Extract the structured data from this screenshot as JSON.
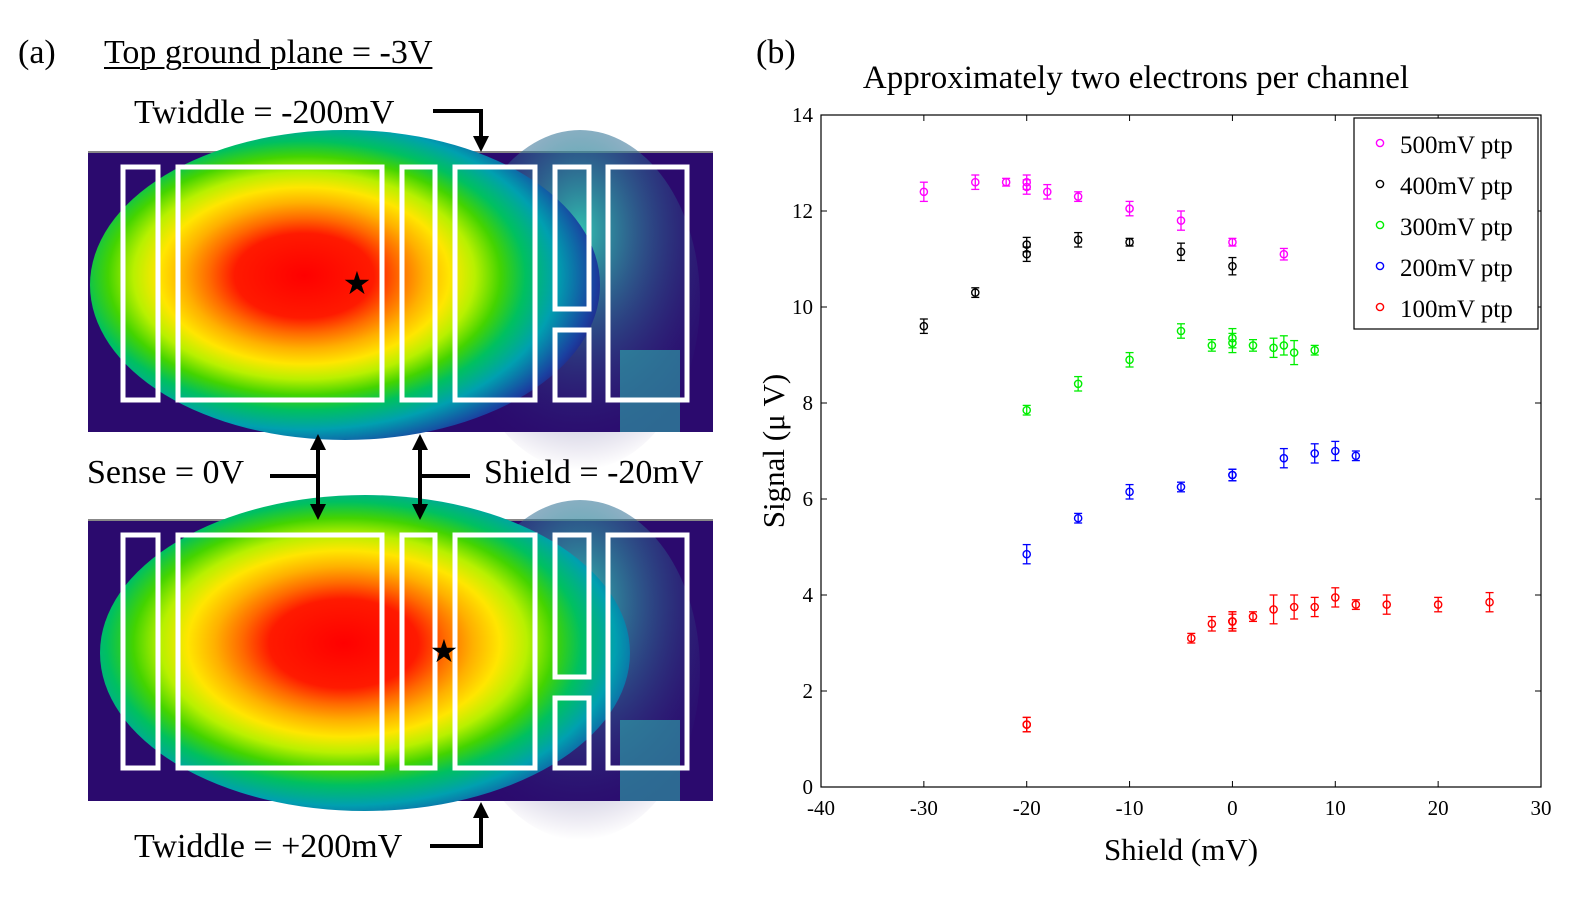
{
  "panel_a": {
    "label": "(a)",
    "ground_plane": "Top ground plane  = -3V",
    "twiddle_top": "Twiddle = -200mV",
    "twiddle_bottom": "Twiddle = +200mV",
    "sense": "Sense = 0V",
    "shield": "Shield = -20mV"
  },
  "panel_b": {
    "label": "(b)"
  },
  "chart_data": {
    "type": "scatter",
    "title": "Approximately two electrons per channel",
    "xlabel": "Shield (mV)",
    "ylabel": "Signal (μ V)",
    "xlim": [
      -40,
      30
    ],
    "ylim": [
      0,
      14
    ],
    "xticks": [
      -40,
      -30,
      -20,
      -10,
      0,
      10,
      20,
      30
    ],
    "yticks": [
      0,
      2,
      4,
      6,
      8,
      10,
      12,
      14
    ],
    "legend_position": "top-right",
    "series": [
      {
        "name": "500mV ptp",
        "color": "#ff00ff",
        "x": [
          -30,
          -25,
          -22,
          -20,
          -20,
          -18,
          -15,
          -10,
          -5,
          0,
          5
        ],
        "y": [
          12.4,
          12.6,
          12.6,
          12.6,
          12.5,
          12.4,
          12.3,
          12.05,
          11.8,
          11.35,
          11.1
        ],
        "err": [
          0.2,
          0.15,
          0.08,
          0.15,
          0.15,
          0.15,
          0.1,
          0.15,
          0.2,
          0.08,
          0.12
        ]
      },
      {
        "name": "400mV ptp",
        "color": "#000000",
        "x": [
          -30,
          -25,
          -20,
          -20,
          -15,
          -10,
          -5,
          0
        ],
        "y": [
          9.6,
          10.3,
          11.3,
          11.1,
          11.4,
          11.35,
          11.15,
          10.85
        ],
        "err": [
          0.15,
          0.1,
          0.15,
          0.15,
          0.15,
          0.08,
          0.18,
          0.18
        ]
      },
      {
        "name": "300mV ptp",
        "color": "#00ee00",
        "x": [
          -20,
          -15,
          -10,
          -5,
          -2,
          0,
          0,
          2,
          4,
          5,
          6,
          8
        ],
        "y": [
          7.85,
          8.4,
          8.9,
          9.5,
          9.2,
          9.35,
          9.25,
          9.2,
          9.15,
          9.2,
          9.05,
          9.1
        ],
        "err": [
          0.1,
          0.15,
          0.15,
          0.15,
          0.12,
          0.2,
          0.2,
          0.12,
          0.2,
          0.2,
          0.25,
          0.1
        ]
      },
      {
        "name": "200mV ptp",
        "color": "#0000ff",
        "x": [
          -20,
          -15,
          -10,
          -5,
          0,
          0,
          5,
          8,
          10,
          12
        ],
        "y": [
          4.85,
          5.6,
          6.15,
          6.25,
          6.5,
          6.5,
          6.85,
          6.95,
          7.0,
          6.9
        ],
        "err": [
          0.2,
          0.1,
          0.15,
          0.1,
          0.12,
          0.12,
          0.2,
          0.2,
          0.2,
          0.1
        ]
      },
      {
        "name": "100mV ptp",
        "color": "#ff0000",
        "x": [
          -20,
          -20,
          -4,
          -2,
          0,
          0,
          0,
          2,
          4,
          6,
          8,
          10,
          12,
          15,
          20,
          25
        ],
        "y": [
          1.3,
          1.3,
          3.1,
          3.4,
          3.45,
          3.45,
          3.45,
          3.55,
          3.7,
          3.75,
          3.75,
          3.95,
          3.8,
          3.8,
          3.8,
          3.85
        ],
        "err": [
          0.15,
          0.15,
          0.1,
          0.15,
          0.2,
          0.15,
          0.2,
          0.1,
          0.3,
          0.25,
          0.2,
          0.2,
          0.1,
          0.2,
          0.15,
          0.2
        ]
      }
    ]
  }
}
